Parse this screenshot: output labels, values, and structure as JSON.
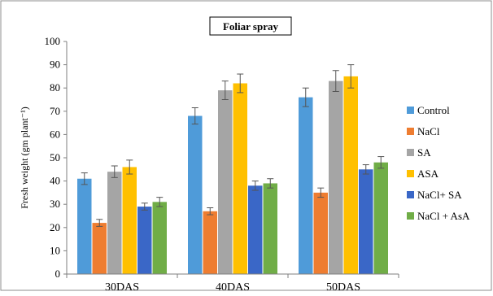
{
  "chart_data": {
    "type": "bar",
    "title": "Foliar spray",
    "ylabel": "Fresh weight  (gm plant⁻¹)",
    "xlabel": "",
    "ylim": [
      0,
      100
    ],
    "ytick_step": 10,
    "yticks": [
      "0",
      "10",
      "20",
      "30",
      "40",
      "50",
      "60",
      "70",
      "80",
      "90",
      "100"
    ],
    "categories": [
      "30DAS",
      "40DAS",
      "50DAS"
    ],
    "legend_position": "right",
    "grid": false,
    "error_bars": true,
    "series": [
      {
        "name": "Control",
        "color": "#4f9bd9",
        "values": [
          41,
          68,
          76
        ],
        "errors": [
          2.5,
          3.5,
          4
        ]
      },
      {
        "name": "NaCl",
        "color": "#ee7d31",
        "values": [
          22,
          27,
          35
        ],
        "errors": [
          1.5,
          1.5,
          2
        ]
      },
      {
        "name": "SA",
        "color": "#a5a5a5",
        "values": [
          44,
          79,
          83
        ],
        "errors": [
          2.5,
          4,
          4.5
        ]
      },
      {
        "name": "ASA",
        "color": "#ffc000",
        "values": [
          46,
          82,
          85
        ],
        "errors": [
          3,
          4,
          5
        ]
      },
      {
        "name": "NaCl+ SA",
        "color": "#3a67c7",
        "values": [
          29,
          38,
          45
        ],
        "errors": [
          1.5,
          2,
          2
        ]
      },
      {
        "name": "NaCl + AsA",
        "color": "#70ad47",
        "values": [
          31,
          39,
          48
        ],
        "errors": [
          2,
          2,
          2.5
        ]
      }
    ]
  }
}
